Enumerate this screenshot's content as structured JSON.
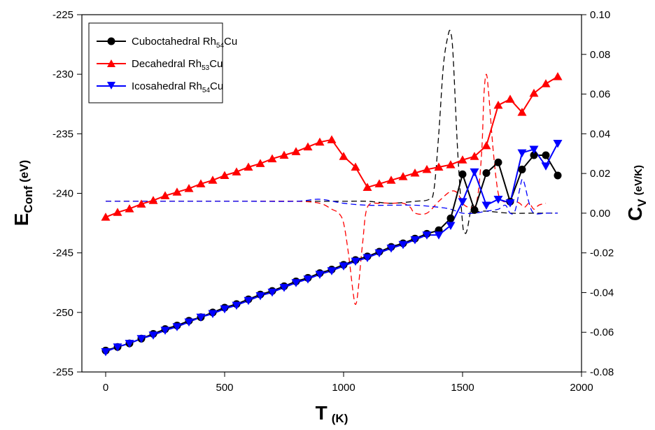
{
  "chart_data": {
    "type": "line",
    "x_axis": {
      "label": "T",
      "unit": "(K)",
      "range": [
        -100,
        2000
      ],
      "ticks": [
        0,
        500,
        1000,
        1500,
        2000
      ]
    },
    "y_left": {
      "label": "E",
      "subscript": "Conf",
      "unit": "(eV)",
      "range": [
        -255,
        -225
      ],
      "ticks": [
        -255,
        -250,
        -245,
        -240,
        -235,
        -230,
        -225
      ]
    },
    "y_right": {
      "label": "C",
      "subscript": "V",
      "unit": "(eV/K)",
      "range": [
        -0.08,
        0.1
      ],
      "ticks": [
        "-0.08",
        "-0.06",
        "-0.04",
        "-0.02",
        "0.00",
        "0.02",
        "0.04",
        "0.06",
        "0.08",
        "0.10"
      ]
    },
    "grid": false,
    "legend_position": "top-left",
    "legend": [
      {
        "name": "Cuboctahedral Rh",
        "sub": "54",
        "suffix": "Cu",
        "color": "#000000",
        "marker": "circle"
      },
      {
        "name": "Decahedral Rh",
        "sub": "53",
        "suffix": "Cu",
        "color": "#ff0000",
        "marker": "triangle-up"
      },
      {
        "name": "Icosahedral Rh",
        "sub": "54",
        "suffix": "Cu",
        "color": "#0000ff",
        "marker": "triangle-down"
      }
    ],
    "energy_series": [
      {
        "name": "Cuboctahedral Rh54Cu",
        "color": "#000000",
        "marker": "circle",
        "x": [
          0,
          50,
          100,
          150,
          200,
          250,
          300,
          350,
          400,
          450,
          500,
          550,
          600,
          650,
          700,
          750,
          800,
          850,
          900,
          950,
          1000,
          1050,
          1100,
          1150,
          1200,
          1250,
          1300,
          1350,
          1400,
          1450,
          1500,
          1550,
          1600,
          1650,
          1700,
          1750,
          1800,
          1850,
          1900
        ],
        "y": [
          -253.2,
          -252.9,
          -252.6,
          -252.2,
          -251.8,
          -251.4,
          -251.1,
          -250.7,
          -250.4,
          -250.0,
          -249.6,
          -249.3,
          -248.9,
          -248.5,
          -248.2,
          -247.8,
          -247.4,
          -247.1,
          -246.7,
          -246.4,
          -246.0,
          -245.6,
          -245.3,
          -244.9,
          -244.5,
          -244.2,
          -243.8,
          -243.4,
          -243.1,
          -242.1,
          -238.4,
          -241.4,
          -238.3,
          -237.4,
          -240.7,
          -238.0,
          -236.8,
          -236.8,
          -238.5
        ]
      },
      {
        "name": "Decahedral Rh53Cu",
        "color": "#ff0000",
        "marker": "triangle-up",
        "x": [
          0,
          50,
          100,
          150,
          200,
          250,
          300,
          350,
          400,
          450,
          500,
          550,
          600,
          650,
          700,
          750,
          800,
          850,
          900,
          950,
          1000,
          1050,
          1100,
          1150,
          1200,
          1250,
          1300,
          1350,
          1400,
          1450,
          1500,
          1550,
          1600,
          1650,
          1700,
          1750,
          1800,
          1850,
          1900
        ],
        "y": [
          -242.0,
          -241.6,
          -241.3,
          -240.9,
          -240.6,
          -240.2,
          -239.9,
          -239.6,
          -239.2,
          -238.9,
          -238.5,
          -238.2,
          -237.8,
          -237.5,
          -237.1,
          -236.8,
          -236.5,
          -236.1,
          -235.7,
          -235.5,
          -236.9,
          -237.8,
          -239.5,
          -239.2,
          -238.9,
          -238.6,
          -238.3,
          -238.0,
          -237.8,
          -237.6,
          -237.2,
          -236.9,
          -236.0,
          -232.6,
          -232.1,
          -233.2,
          -231.6,
          -230.8,
          -230.2
        ]
      },
      {
        "name": "Icosahedral Rh54Cu",
        "color": "#0000ff",
        "marker": "triangle-down",
        "x": [
          0,
          50,
          100,
          150,
          200,
          250,
          300,
          350,
          400,
          450,
          500,
          550,
          600,
          650,
          700,
          750,
          800,
          850,
          900,
          950,
          1000,
          1050,
          1100,
          1150,
          1200,
          1250,
          1300,
          1350,
          1400,
          1450,
          1500,
          1550,
          1600,
          1650,
          1700,
          1750,
          1800,
          1850,
          1900
        ],
        "y": [
          -253.3,
          -252.9,
          -252.6,
          -252.2,
          -251.9,
          -251.5,
          -251.2,
          -250.8,
          -250.4,
          -250.1,
          -249.7,
          -249.4,
          -249.0,
          -248.6,
          -248.3,
          -247.9,
          -247.5,
          -247.2,
          -246.8,
          -246.5,
          -246.1,
          -245.7,
          -245.4,
          -245.0,
          -244.6,
          -244.3,
          -243.9,
          -243.5,
          -243.5,
          -242.7,
          -240.7,
          -238.2,
          -241.0,
          -240.5,
          -240.8,
          -236.6,
          -236.3,
          -237.7,
          -235.8
        ]
      }
    ],
    "cv_series": [
      {
        "name": "Cuboctahedral Rh54Cu Cv",
        "color": "#000000",
        "style": "dashed",
        "x": [
          0,
          200,
          400,
          600,
          800,
          1000,
          1100,
          1200,
          1300,
          1360,
          1380,
          1400,
          1420,
          1440,
          1450,
          1460,
          1480,
          1500,
          1510,
          1520,
          1540,
          1560,
          1600,
          1700,
          1800,
          1900
        ],
        "y": [
          0.006,
          0.006,
          0.006,
          0.006,
          0.006,
          0.006,
          0.006,
          0.005,
          0.006,
          0.007,
          0.012,
          0.04,
          0.075,
          0.09,
          0.091,
          0.08,
          0.03,
          -0.005,
          -0.01,
          -0.008,
          0.004,
          0.001,
          0.001,
          0.0,
          0.0,
          0.0
        ]
      },
      {
        "name": "Decahedral Rh53Cu Cv",
        "color": "#ff0000",
        "style": "dashed",
        "x": [
          0,
          200,
          400,
          600,
          800,
          900,
          950,
          980,
          1000,
          1020,
          1040,
          1050,
          1060,
          1080,
          1100,
          1150,
          1200,
          1250,
          1280,
          1300,
          1350,
          1400,
          1450,
          1480,
          1500,
          1530,
          1560,
          1580,
          1590,
          1600,
          1610,
          1630,
          1650,
          1670,
          1700,
          1720,
          1740,
          1760,
          1780,
          1800,
          1820,
          1850
        ],
        "y": [
          0.006,
          0.006,
          0.006,
          0.006,
          0.006,
          0.005,
          0.002,
          0.0,
          -0.005,
          -0.02,
          -0.04,
          -0.046,
          -0.04,
          -0.015,
          0.003,
          0.005,
          0.005,
          0.005,
          0.003,
          0.0,
          0.0,
          0.006,
          0.011,
          0.01,
          0.005,
          0.003,
          0.006,
          0.03,
          0.06,
          0.07,
          0.06,
          0.03,
          0.01,
          0.006,
          0.006,
          0.006,
          0.005,
          0.003,
          0.005,
          0.002,
          0.004,
          0.005
        ]
      },
      {
        "name": "Icosahedral Rh54Cu Cv",
        "color": "#0000ff",
        "style": "dashed",
        "x": [
          0,
          200,
          400,
          600,
          800,
          900,
          1000,
          1100,
          1200,
          1300,
          1400,
          1450,
          1500,
          1550,
          1600,
          1650,
          1680,
          1700,
          1720,
          1740,
          1750,
          1760,
          1780,
          1800,
          1850,
          1900
        ],
        "y": [
          0.006,
          0.006,
          0.006,
          0.006,
          0.006,
          0.007,
          0.005,
          0.004,
          0.004,
          0.004,
          0.003,
          0.002,
          0.0,
          0.0,
          0.001,
          0.002,
          0.004,
          0.0,
          0.001,
          0.012,
          0.017,
          0.015,
          0.005,
          0.0,
          0.0,
          0.0
        ]
      }
    ]
  }
}
